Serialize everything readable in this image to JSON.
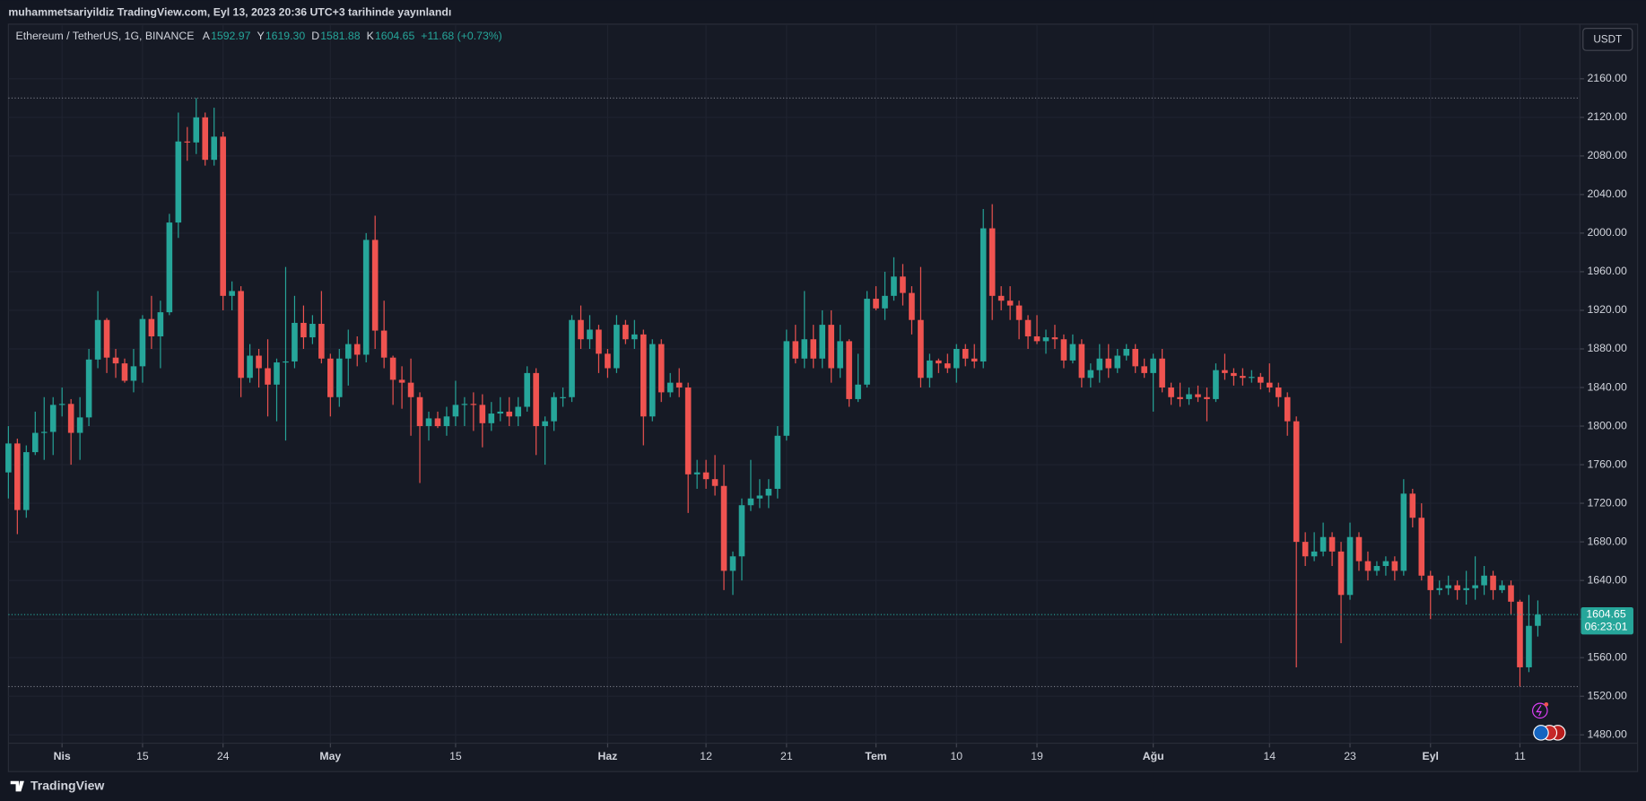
{
  "header": {
    "publisher_line": "muhammetsariyildiz TradingView.com, Eyl 13, 2023 20:36 UTC+3 tarihinde yayınlandı"
  },
  "footer": {
    "brand": "TradingView"
  },
  "chart_data": {
    "type": "candlestick",
    "title": "Ethereum / TetherUS, 1G, BINANCE",
    "currency": "USDT",
    "legend": [
      {
        "prefix": "A",
        "value": 1592.97,
        "label": "1592.97"
      },
      {
        "prefix": "Y",
        "value": 1619.3,
        "label": "1619.30"
      },
      {
        "prefix": "D",
        "value": 1581.88,
        "label": "1581.88"
      },
      {
        "prefix": "K",
        "value": 1604.65,
        "label": "1604.65"
      }
    ],
    "change_label": "+11.68 (+0.73%)",
    "countdown": "06:23:01",
    "up_color": "#26a69a",
    "down_color": "#ef5350",
    "grid": true,
    "open": [
      1752,
      1782,
      1713,
      1773,
      1793,
      1794,
      1822,
      1823,
      1793,
      1809,
      1869,
      1910,
      1871,
      1865,
      1847,
      1862,
      1911,
      1893,
      1918,
      2011,
      2095,
      2094,
      2120,
      2076,
      2100,
      1935,
      1940,
      1850,
      1873,
      1860,
      1843,
      1866,
      1867,
      1907,
      1892,
      1906,
      1870,
      1830,
      1870,
      1885,
      1874,
      1993,
      1899,
      1871,
      1848,
      1845,
      1830,
      1800,
      1808,
      1800,
      1810,
      1822,
      1823,
      1822,
      1803,
      1813,
      1815,
      1810,
      1820,
      1855,
      1800,
      1805,
      1830,
      1830,
      1910,
      1890,
      1900,
      1875,
      1860,
      1905,
      1890,
      1895,
      1810,
      1885,
      1835,
      1845,
      1840,
      1750,
      1752,
      1745,
      1738,
      1650,
      1665,
      1718,
      1725,
      1728,
      1735,
      1790,
      1888,
      1870,
      1890,
      1870,
      1905,
      1860,
      1888,
      1828,
      1843,
      1932,
      1922,
      1935,
      1955,
      1938,
      1910,
      1850,
      1868,
      1865,
      1860,
      1880,
      1870,
      1867,
      2005,
      1935,
      1930,
      1925,
      1910,
      1893,
      1888,
      1892,
      1890,
      1868,
      1885,
      1850,
      1858,
      1870,
      1860,
      1873,
      1880,
      1862,
      1855,
      1870,
      1840,
      1830,
      1828,
      1833,
      1830,
      1828,
      1858,
      1855,
      1852,
      1850,
      1851,
      1845,
      1840,
      1830,
      1805,
      1680,
      1665,
      1670,
      1685,
      1670,
      1625,
      1685,
      1660,
      1650,
      1655,
      1660,
      1650,
      1730,
      1705,
      1645,
      1630,
      1632,
      1635,
      1630,
      1632,
      1635,
      1645,
      1630,
      1635,
      1618,
      1550,
      1592.97
    ],
    "high": [
      1800,
      1787,
      1780,
      1815,
      1830,
      1830,
      1840,
      1828,
      1830,
      1880,
      1940,
      1912,
      1880,
      1870,
      1880,
      1915,
      1935,
      1930,
      2020,
      2125,
      2110,
      2140,
      2125,
      2130,
      2105,
      1950,
      1945,
      1885,
      1880,
      1890,
      1870,
      1965,
      1935,
      1925,
      1915,
      1940,
      1875,
      1880,
      1900,
      1893,
      2000,
      2018,
      1930,
      1873,
      1862,
      1870,
      1835,
      1815,
      1815,
      1820,
      1847,
      1830,
      1835,
      1833,
      1825,
      1830,
      1830,
      1830,
      1862,
      1860,
      1810,
      1835,
      1840,
      1915,
      1925,
      1915,
      1905,
      1880,
      1915,
      1910,
      1910,
      1900,
      1890,
      1890,
      1855,
      1860,
      1845,
      1765,
      1765,
      1770,
      1760,
      1670,
      1725,
      1765,
      1745,
      1745,
      1800,
      1900,
      1905,
      1940,
      1905,
      1920,
      1920,
      1905,
      1890,
      1875,
      1940,
      1945,
      1960,
      1975,
      1968,
      1945,
      1965,
      1875,
      1870,
      1875,
      1885,
      1885,
      1885,
      2025,
      2030,
      1945,
      1945,
      1930,
      1915,
      1915,
      1900,
      1905,
      1895,
      1895,
      1890,
      1865,
      1885,
      1885,
      1880,
      1885,
      1885,
      1870,
      1875,
      1880,
      1845,
      1845,
      1840,
      1842,
      1840,
      1865,
      1875,
      1860,
      1860,
      1858,
      1855,
      1865,
      1845,
      1835,
      1810,
      1690,
      1690,
      1700,
      1690,
      1680,
      1700,
      1690,
      1670,
      1660,
      1665,
      1665,
      1745,
      1735,
      1720,
      1650,
      1640,
      1645,
      1640,
      1650,
      1665,
      1655,
      1650,
      1640,
      1640,
      1620,
      1625,
      1619.3
    ],
    "low": [
      1725,
      1688,
      1705,
      1770,
      1765,
      1770,
      1810,
      1760,
      1765,
      1800,
      1860,
      1855,
      1850,
      1845,
      1835,
      1845,
      1880,
      1860,
      1915,
      1995,
      2075,
      2082,
      2070,
      2070,
      1920,
      1920,
      1830,
      1845,
      1840,
      1810,
      1805,
      1785,
      1860,
      1880,
      1885,
      1865,
      1810,
      1820,
      1842,
      1862,
      1866,
      1880,
      1860,
      1822,
      1818,
      1790,
      1741,
      1785,
      1798,
      1790,
      1800,
      1800,
      1795,
      1778,
      1795,
      1805,
      1800,
      1800,
      1815,
      1770,
      1760,
      1795,
      1820,
      1825,
      1880,
      1880,
      1855,
      1850,
      1855,
      1885,
      1880,
      1780,
      1805,
      1825,
      1830,
      1830,
      1710,
      1735,
      1735,
      1728,
      1630,
      1625,
      1640,
      1712,
      1715,
      1715,
      1725,
      1785,
      1865,
      1860,
      1860,
      1860,
      1845,
      1850,
      1820,
      1825,
      1840,
      1920,
      1910,
      1930,
      1925,
      1895,
      1840,
      1840,
      1855,
      1855,
      1845,
      1862,
      1860,
      1860,
      1910,
      1920,
      1910,
      1890,
      1880,
      1885,
      1875,
      1880,
      1860,
      1865,
      1840,
      1840,
      1845,
      1850,
      1855,
      1868,
      1855,
      1850,
      1815,
      1835,
      1822,
      1820,
      1822,
      1825,
      1805,
      1825,
      1848,
      1842,
      1842,
      1845,
      1838,
      1835,
      1820,
      1790,
      1550,
      1655,
      1660,
      1665,
      1655,
      1575,
      1620,
      1650,
      1640,
      1645,
      1645,
      1640,
      1645,
      1695,
      1640,
      1600,
      1625,
      1625,
      1620,
      1615,
      1620,
      1625,
      1620,
      1627,
      1605,
      1530,
      1545,
      1581.88
    ],
    "close": [
      1782,
      1713,
      1773,
      1793,
      1794,
      1822,
      1823,
      1793,
      1809,
      1869,
      1910,
      1871,
      1865,
      1847,
      1862,
      1911,
      1893,
      1918,
      2011,
      2095,
      2094,
      2120,
      2076,
      2100,
      1935,
      1940,
      1850,
      1873,
      1860,
      1843,
      1866,
      1867,
      1907,
      1892,
      1906,
      1870,
      1830,
      1870,
      1885,
      1874,
      1993,
      1899,
      1871,
      1848,
      1845,
      1830,
      1800,
      1808,
      1800,
      1810,
      1822,
      1823,
      1822,
      1803,
      1813,
      1815,
      1810,
      1820,
      1855,
      1800,
      1805,
      1830,
      1830,
      1910,
      1890,
      1900,
      1875,
      1860,
      1905,
      1890,
      1895,
      1810,
      1885,
      1835,
      1845,
      1840,
      1750,
      1752,
      1745,
      1738,
      1650,
      1665,
      1718,
      1725,
      1728,
      1735,
      1790,
      1888,
      1870,
      1890,
      1870,
      1905,
      1860,
      1888,
      1828,
      1843,
      1932,
      1922,
      1935,
      1955,
      1938,
      1910,
      1850,
      1868,
      1865,
      1860,
      1880,
      1870,
      1867,
      2005,
      1935,
      1930,
      1925,
      1910,
      1893,
      1888,
      1892,
      1890,
      1868,
      1885,
      1850,
      1858,
      1870,
      1860,
      1873,
      1880,
      1862,
      1855,
      1870,
      1840,
      1830,
      1828,
      1833,
      1830,
      1828,
      1858,
      1855,
      1852,
      1850,
      1851,
      1845,
      1840,
      1830,
      1805,
      1680,
      1665,
      1670,
      1685,
      1670,
      1625,
      1685,
      1660,
      1650,
      1655,
      1660,
      1650,
      1730,
      1705,
      1645,
      1630,
      1632,
      1635,
      1630,
      1632,
      1635,
      1645,
      1630,
      1635,
      1618,
      1550,
      1592.97,
      1604.65
    ],
    "xlim": [
      0,
      175.7
    ],
    "xticks": [
      {
        "value": 6,
        "label": "Nis"
      },
      15,
      24,
      {
        "value": 36,
        "label": "May"
      },
      {
        "value": 50,
        "label": "15"
      },
      {
        "value": 67,
        "label": "Haz"
      },
      {
        "value": 78,
        "label": "12"
      },
      {
        "value": 87,
        "label": "21"
      },
      {
        "value": 97,
        "label": "Tem"
      },
      {
        "value": 106,
        "label": "10"
      },
      {
        "value": 115,
        "label": "19"
      },
      {
        "value": 128,
        "label": "Ağu"
      },
      {
        "value": 141,
        "label": "14"
      },
      {
        "value": 150,
        "label": "23"
      },
      {
        "value": 159,
        "label": "Eyl"
      },
      {
        "value": 169,
        "label": "11"
      }
    ],
    "ylim": [
      1471.3,
      2215.5
    ],
    "yticks": [
      {
        "value": 1480,
        "label": "1480.00"
      },
      {
        "value": 1520,
        "label": "1520.00"
      },
      {
        "value": 1560,
        "label": "1560.00"
      },
      {
        "value": 1600,
        "label": "1600.00"
      },
      {
        "value": 1640,
        "label": "1640.00"
      },
      {
        "value": 1680,
        "label": "1680.00"
      },
      {
        "value": 1720,
        "label": "1720.00"
      },
      {
        "value": 1760,
        "label": "1760.00"
      },
      {
        "value": 1800,
        "label": "1800.00"
      },
      {
        "value": 1840,
        "label": "1840.00"
      },
      {
        "value": 1880,
        "label": "1880.00"
      },
      {
        "value": 1920,
        "label": "1920.00"
      },
      {
        "value": 1960,
        "label": "1960.00"
      },
      {
        "value": 2000,
        "label": "2000.00"
      },
      {
        "value": 2040,
        "label": "2040.00"
      },
      {
        "value": 2080,
        "label": "2080.00"
      },
      {
        "value": 2120,
        "label": "2120.00"
      },
      {
        "value": 2160,
        "label": "2160.00"
      }
    ]
  }
}
